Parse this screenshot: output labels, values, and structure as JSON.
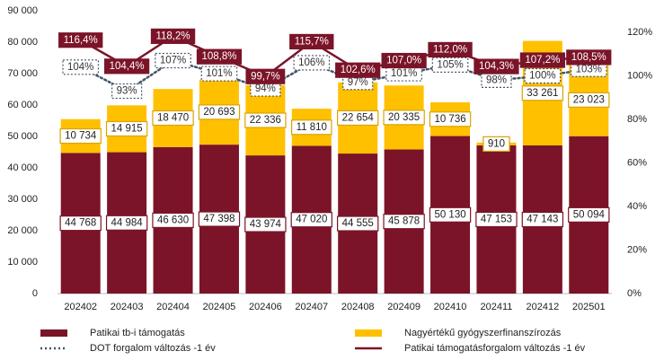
{
  "chart_data": {
    "type": "bar",
    "categories": [
      "202402",
      "202403",
      "202404",
      "202405",
      "202406",
      "202407",
      "202408",
      "202409",
      "202410",
      "202411",
      "202412",
      "202501"
    ],
    "ylim": [
      0,
      90000
    ],
    "yticks": [
      0,
      {
        "value": 10000,
        "label": "10 000"
      },
      {
        "value": 20000,
        "label": "20 000"
      },
      {
        "value": 30000,
        "label": "30 000"
      },
      {
        "value": 40000,
        "label": "40 000"
      },
      {
        "value": 50000,
        "label": "50 000"
      },
      {
        "value": 60000,
        "label": "60 000"
      },
      {
        "value": 70000,
        "label": "70 000"
      },
      {
        "value": 80000,
        "label": "80 000"
      },
      {
        "value": 90000,
        "label": "90 000"
      }
    ],
    "y2lim": [
      0,
      120
    ],
    "y2ticks": [
      {
        "value": 0,
        "label": "0%"
      },
      {
        "value": 20,
        "label": "20%"
      },
      {
        "value": 40,
        "label": "40%"
      },
      {
        "value": 60,
        "label": "60%"
      },
      {
        "value": 80,
        "label": "80%"
      },
      {
        "value": 100,
        "label": "100%"
      },
      {
        "value": 120,
        "label": "120%"
      }
    ],
    "series": [
      {
        "name": "Patikai tb-i támogatás",
        "type": "bar",
        "color": "#7b1428",
        "values": [
          44768,
          44984,
          46630,
          47398,
          43974,
          47020,
          44555,
          45878,
          50130,
          47153,
          47143,
          50094
        ],
        "value_labels": [
          "44 768",
          "44 984",
          "46 630",
          "47 398",
          "43 974",
          "47 020",
          "44 555",
          "45 878",
          "50 130",
          "47 153",
          "47 143",
          "50 094"
        ]
      },
      {
        "name": "Nagyértékű gyógyszerfinanszírozás",
        "type": "bar",
        "color": "#ffc000",
        "values": [
          10734,
          14915,
          18470,
          20693,
          22336,
          11810,
          22654,
          20335,
          10736,
          910,
          33261,
          23023
        ],
        "value_labels": [
          "10 734",
          "14 915",
          "18 470",
          "20 693",
          "22 336",
          "11 810",
          "22 654",
          "20 335",
          "10 736",
          "910",
          "33 261",
          "23 023"
        ]
      },
      {
        "name": "DOT forgalom változás -1 év",
        "type": "line",
        "axis": "y2",
        "color": "#44546a",
        "line_style": "dotted",
        "values": [
          104,
          93,
          107,
          101,
          94,
          106,
          97,
          101,
          105,
          98,
          100,
          103
        ],
        "value_labels": [
          "104%",
          "93%",
          "107%",
          "101%",
          "94%",
          "106%",
          "97%",
          "101%",
          "105%",
          "98%",
          "100%",
          "103%"
        ]
      },
      {
        "name": "Patikai támogatásforgalom változás -1 év",
        "type": "line",
        "axis": "y2",
        "color": "#7b1428",
        "line_style": "solid",
        "values": [
          116.4,
          104.4,
          118.2,
          108.8,
          99.7,
          115.7,
          102.6,
          107.0,
          112.0,
          104.3,
          107.2,
          108.5
        ],
        "value_labels": [
          "116,4%",
          "104,4%",
          "118,2%",
          "108,8%",
          "99,7%",
          "115,7%",
          "102,6%",
          "107,0%",
          "112,0%",
          "104,3%",
          "107,2%",
          "108,5%"
        ]
      }
    ]
  }
}
